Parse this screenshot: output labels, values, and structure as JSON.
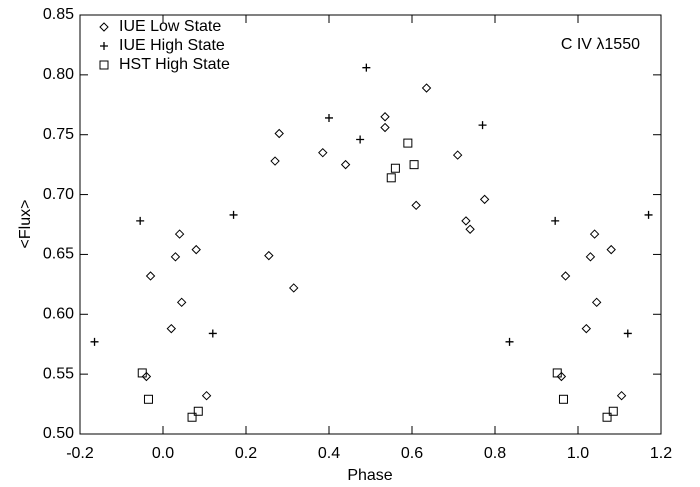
{
  "chart_data": {
    "type": "scatter",
    "x_label": "Phase",
    "y_label": "<Flux>",
    "annotation": "C IV λ1550",
    "xlim": [
      -0.2,
      1.2
    ],
    "xticks": [
      -0.2,
      {
        "value": 0,
        "label": "0.0"
      },
      0.2,
      0.4,
      0.6,
      0.8,
      {
        "value": 1,
        "label": "1.0"
      },
      1.2
    ],
    "ylim": [
      0.5,
      0.85
    ],
    "yticks": [
      {
        "value": 0.5,
        "label": "0.50"
      },
      0.55,
      {
        "value": 0.6,
        "label": "0.60"
      },
      0.65,
      {
        "value": 0.7,
        "label": "0.70"
      },
      0.75,
      {
        "value": 0.8,
        "label": "0.80"
      },
      0.85
    ],
    "legend": "upper left",
    "series": [
      {
        "name": "IUE Low State",
        "color": "#000000",
        "marker": "diamond",
        "x": [
          -0.04,
          -0.03,
          0.02,
          0.03,
          0.04,
          0.045,
          0.08,
          0.105,
          0.255,
          0.27,
          0.28,
          0.315,
          0.385,
          0.44,
          0.535,
          0.535,
          0.61,
          0.635,
          0.71,
          0.73,
          0.74,
          0.775,
          0.96,
          0.97,
          1.02,
          1.03,
          1.04,
          1.045,
          1.08,
          1.105
        ],
        "values": [
          0.548,
          0.632,
          0.588,
          0.648,
          0.667,
          0.61,
          0.654,
          0.532,
          0.649,
          0.728,
          0.751,
          0.622,
          0.735,
          0.725,
          0.765,
          0.756,
          0.691,
          0.789,
          0.733,
          0.678,
          0.671,
          0.696,
          0.548,
          0.632,
          0.588,
          0.648,
          0.667,
          0.61,
          0.654,
          0.532
        ]
      },
      {
        "name": "IUE High State",
        "color": "#000000",
        "marker": "plus",
        "x": [
          -0.165,
          -0.055,
          0.12,
          0.17,
          0.4,
          0.475,
          0.49,
          0.77,
          0.835,
          0.945,
          1.12,
          1.17
        ],
        "values": [
          0.577,
          0.678,
          0.584,
          0.683,
          0.764,
          0.746,
          0.806,
          0.758,
          0.577,
          0.678,
          0.584,
          0.683
        ]
      },
      {
        "name": "HST High State",
        "color": "#000000",
        "marker": "square",
        "x": [
          -0.05,
          -0.035,
          0.07,
          0.085,
          0.55,
          0.56,
          0.59,
          0.605,
          0.95,
          0.965,
          1.07,
          1.085
        ],
        "values": [
          0.551,
          0.529,
          0.514,
          0.519,
          0.714,
          0.722,
          0.743,
          0.725,
          0.551,
          0.529,
          0.514,
          0.519
        ]
      }
    ]
  }
}
